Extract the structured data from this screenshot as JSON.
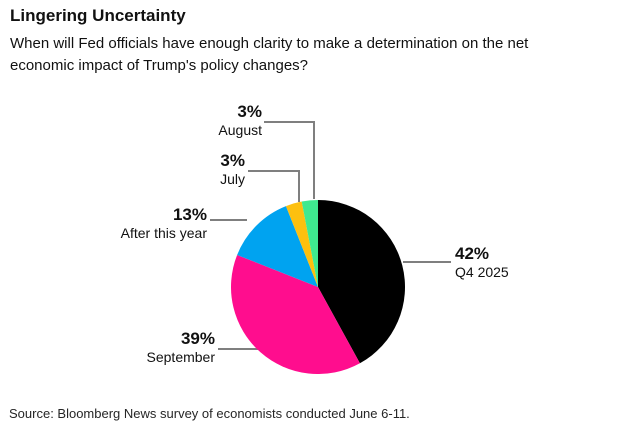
{
  "header": {
    "title": "Lingering Uncertainty",
    "subtitle_line1": "When will Fed officials have enough clarity to make a determination on the net",
    "subtitle_line2": "economic impact of Trump's policy changes?"
  },
  "chart_data": {
    "type": "pie",
    "title": "Lingering Uncertainty",
    "question": "When will Fed officials have enough clarity to make a determination on the net economic impact of Trump's policy changes?",
    "direction": "clockwise",
    "start_angle_deg": 0,
    "legend_position": "callout-labels",
    "slices": [
      {
        "label": "Q4 2025",
        "value": 42,
        "pct_text": "42%",
        "color": "#000000"
      },
      {
        "label": "September",
        "value": 39,
        "pct_text": "39%",
        "color": "#ff0d8e"
      },
      {
        "label": "After this year",
        "value": 13,
        "pct_text": "13%",
        "color": "#00a3f0"
      },
      {
        "label": "July",
        "value": 3,
        "pct_text": "3%",
        "color": "#fdc00f"
      },
      {
        "label": "August",
        "value": 3,
        "pct_text": "3%",
        "color": "#3fe98f"
      }
    ]
  },
  "footer": {
    "source": "Source: Bloomberg News survey of economists conducted June 6-11."
  },
  "style": {
    "callout_color": "#7f7f7f"
  }
}
